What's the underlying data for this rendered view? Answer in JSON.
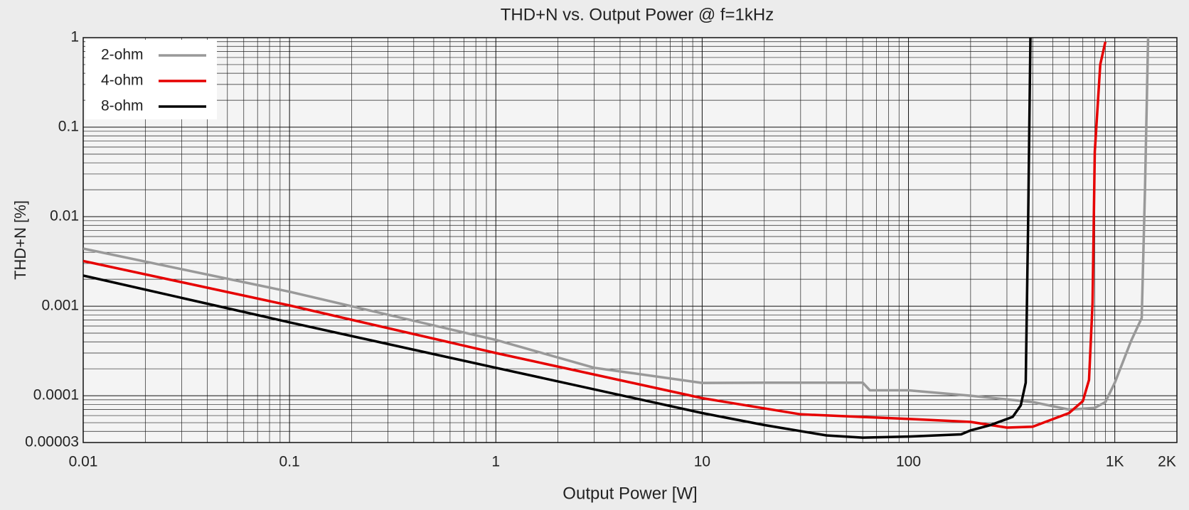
{
  "chart_data": {
    "type": "line",
    "title": "THD+N vs. Output Power @ f=1kHz",
    "x_label": "Output Power [W]",
    "y_label": "THD+N [%]",
    "x_scale": "log",
    "y_scale": "log",
    "xlim": [
      0.01,
      2000
    ],
    "ylim": [
      3e-05,
      1
    ],
    "xticks": [
      0.01,
      0.1,
      1,
      10,
      100,
      {
        "value": 1000,
        "label": "1K"
      },
      {
        "value": 2000,
        "label": "2K"
      }
    ],
    "yticks": [
      3e-05,
      0.0001,
      0.001,
      0.01,
      0.1,
      1
    ],
    "grid": true,
    "legend": "upper left",
    "series": [
      {
        "name": "2-ohm",
        "color": "#999999",
        "x": [
          0.01,
          0.1,
          1,
          3,
          10,
          20,
          60,
          65,
          100,
          200,
          400,
          600,
          800,
          900,
          1000,
          1200,
          1350,
          1400,
          1450
        ],
        "values": [
          0.0044,
          0.00145,
          0.00042,
          0.000205,
          0.000139,
          0.00014,
          0.00014,
          0.000115,
          0.000115,
          0.0001,
          8.5e-05,
          7e-05,
          7.3e-05,
          8.5e-05,
          0.00014,
          0.00041,
          0.00074,
          0.02,
          1
        ]
      },
      {
        "name": "4-ohm",
        "color": "#e60000",
        "x": [
          0.01,
          0.1,
          1,
          10,
          30,
          100,
          200,
          300,
          400,
          600,
          700,
          750,
          780,
          800,
          850,
          900
        ],
        "values": [
          0.0032,
          0.00102,
          0.0003,
          9.4e-05,
          6.2e-05,
          5.5e-05,
          5.1e-05,
          4.4e-05,
          4.5e-05,
          6.4e-05,
          8.7e-05,
          0.00015,
          0.0011,
          0.053,
          0.5,
          0.9
        ]
      },
      {
        "name": "8-ohm",
        "color": "#000000",
        "x": [
          0.01,
          0.1,
          1,
          10,
          20,
          40,
          60,
          100,
          180,
          200,
          250,
          320,
          350,
          370,
          380,
          390
        ],
        "values": [
          0.0022,
          0.00066,
          0.000205,
          6.4e-05,
          4.7e-05,
          3.6e-05,
          3.4e-05,
          3.5e-05,
          3.7e-05,
          4.1e-05,
          4.7e-05,
          5.8e-05,
          7.8e-05,
          0.00014,
          0.0076,
          1
        ]
      }
    ]
  }
}
